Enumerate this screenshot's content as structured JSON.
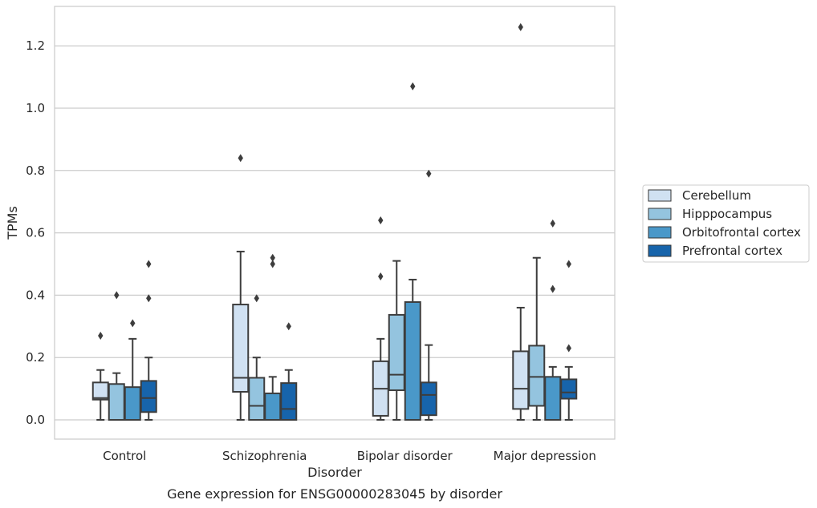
{
  "caption": "Gene expression for ENSG00000283045 by disorder",
  "chart_data": {
    "type": "box",
    "xlabel": "Disorder",
    "ylabel": "TPMs",
    "ylim": [
      -0.06,
      1.33
    ],
    "yticks": [
      0.0,
      0.2,
      0.4,
      0.6,
      0.8,
      1.0,
      1.2
    ],
    "ytick_labels": [
      "0.0",
      "0.2",
      "0.4",
      "0.6",
      "0.8",
      "1.0",
      "1.2"
    ],
    "grid": "horizontal",
    "legend_position": "right",
    "categories": [
      "Control",
      "Schizophrenia",
      "Bipolar disorder",
      "Major depression"
    ],
    "series": [
      {
        "name": "Cerebellum",
        "color": "#d0e1f2",
        "boxes": [
          {
            "whisker_low": 0.0,
            "q1": 0.065,
            "median": 0.07,
            "q3": 0.12,
            "whisker_high": 0.16,
            "outliers": [
              0.27
            ]
          },
          {
            "whisker_low": 0.0,
            "q1": 0.09,
            "median": 0.135,
            "q3": 0.37,
            "whisker_high": 0.54,
            "outliers": [
              0.84
            ]
          },
          {
            "whisker_low": 0.0,
            "q1": 0.013,
            "median": 0.1,
            "q3": 0.188,
            "whisker_high": 0.26,
            "outliers": [
              0.46,
              0.64
            ]
          },
          {
            "whisker_low": 0.0,
            "q1": 0.035,
            "median": 0.1,
            "q3": 0.22,
            "whisker_high": 0.36,
            "outliers": [
              1.26
            ]
          }
        ]
      },
      {
        "name": "Hipppocampus",
        "color": "#94c4df",
        "boxes": [
          {
            "whisker_low": 0.0,
            "q1": 0.0,
            "median": 0.0,
            "q3": 0.115,
            "whisker_high": 0.15,
            "outliers": [
              0.4
            ]
          },
          {
            "whisker_low": 0.0,
            "q1": 0.0,
            "median": 0.045,
            "q3": 0.135,
            "whisker_high": 0.2,
            "outliers": [
              0.39
            ]
          },
          {
            "whisker_low": 0.0,
            "q1": 0.095,
            "median": 0.145,
            "q3": 0.337,
            "whisker_high": 0.51,
            "outliers": []
          },
          {
            "whisker_low": 0.0,
            "q1": 0.045,
            "median": 0.138,
            "q3": 0.238,
            "whisker_high": 0.52,
            "outliers": []
          }
        ]
      },
      {
        "name": "Orbitofrontal cortex",
        "color": "#4a98c9",
        "boxes": [
          {
            "whisker_low": 0.0,
            "q1": 0.0,
            "median": 0.0,
            "q3": 0.105,
            "whisker_high": 0.26,
            "outliers": [
              0.31
            ]
          },
          {
            "whisker_low": 0.0,
            "q1": 0.0,
            "median": 0.0,
            "q3": 0.085,
            "whisker_high": 0.138,
            "outliers": [
              0.5,
              0.52
            ]
          },
          {
            "whisker_low": 0.0,
            "q1": 0.0,
            "median": 0.0,
            "q3": 0.378,
            "whisker_high": 0.45,
            "outliers": [
              1.07
            ]
          },
          {
            "whisker_low": 0.0,
            "q1": 0.0,
            "median": 0.0,
            "q3": 0.138,
            "whisker_high": 0.17,
            "outliers": [
              0.42,
              0.63
            ]
          }
        ]
      },
      {
        "name": "Prefrontal cortex",
        "color": "#1764ab",
        "boxes": [
          {
            "whisker_low": 0.0,
            "q1": 0.025,
            "median": 0.07,
            "q3": 0.125,
            "whisker_high": 0.2,
            "outliers": [
              0.39,
              0.5
            ]
          },
          {
            "whisker_low": 0.0,
            "q1": 0.0,
            "median": 0.035,
            "q3": 0.118,
            "whisker_high": 0.16,
            "outliers": [
              0.3
            ]
          },
          {
            "whisker_low": 0.0,
            "q1": 0.015,
            "median": 0.08,
            "q3": 0.12,
            "whisker_high": 0.24,
            "outliers": [
              0.79
            ]
          },
          {
            "whisker_low": 0.0,
            "q1": 0.068,
            "median": 0.088,
            "q3": 0.13,
            "whisker_high": 0.17,
            "outliers": [
              0.23,
              0.5
            ]
          }
        ]
      }
    ]
  }
}
